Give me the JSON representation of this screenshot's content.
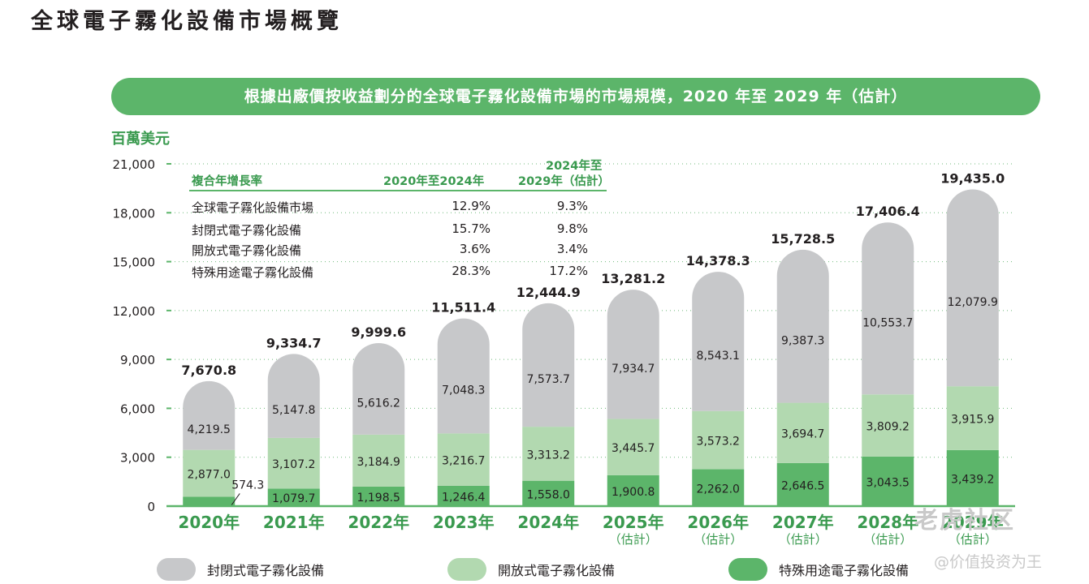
{
  "page_title": "全球電子霧化設備市場概覽",
  "banner": "根據出廠價按收益劃分的全球電子霧化設備市場的市場規模，2020 年至 2029 年（估計）",
  "colors": {
    "closed": "#c7c8ca",
    "open": "#b2d9b0",
    "special": "#5cb56a",
    "accent_text": "#3a9a4f",
    "banner": "#5cb56a"
  },
  "chart_data": {
    "type": "bar",
    "stacked": true,
    "unit_label": "百萬美元",
    "ylim": [
      0,
      21000
    ],
    "yticks": [
      "0",
      "3,000",
      "6,000",
      "9,000",
      "12,000",
      "15,000",
      "18,000",
      "21,000"
    ],
    "ytick_values": [
      0,
      3000,
      6000,
      9000,
      12000,
      15000,
      18000,
      21000
    ],
    "categories": [
      "2020年",
      "2021年",
      "2022年",
      "2023年",
      "2024年",
      "2025年",
      "2026年",
      "2027年",
      "2028年",
      "2029年"
    ],
    "category_notes": [
      "",
      "",
      "",
      "",
      "",
      "（估計）",
      "（估計）",
      "（估計）",
      "（估計）",
      "（估計）"
    ],
    "series": [
      {
        "name": "特殊用途電子霧化設備",
        "key": "special",
        "values": [
          574.3,
          1079.7,
          1198.5,
          1246.4,
          1558.0,
          1900.8,
          2262.0,
          2646.5,
          3043.5,
          3439.2
        ],
        "labels": [
          "574.3",
          "1,079.7",
          "1,198.5",
          "1,246.4",
          "1,558.0",
          "1,900.8",
          "2,262.0",
          "2,646.5",
          "3,043.5",
          "3,439.2"
        ]
      },
      {
        "name": "開放式電子霧化設備",
        "key": "open",
        "values": [
          2877.0,
          3107.2,
          3184.9,
          3216.7,
          3313.2,
          3445.7,
          3573.2,
          3694.7,
          3809.2,
          3915.9
        ],
        "labels": [
          "2,877.0",
          "3,107.2",
          "3,184.9",
          "3,216.7",
          "3,313.2",
          "3,445.7",
          "3,573.2",
          "3,694.7",
          "3,809.2",
          "3,915.9"
        ]
      },
      {
        "name": "封閉式電子霧化設備",
        "key": "closed",
        "values": [
          4219.5,
          5147.8,
          5616.2,
          7048.3,
          7573.7,
          7934.7,
          8543.1,
          9387.3,
          10553.7,
          12079.9
        ],
        "labels": [
          "4,219.5",
          "5,147.8",
          "5,616.2",
          "7,048.3",
          "7,573.7",
          "7,934.7",
          "8,543.1",
          "9,387.3",
          "10,553.7",
          "12,079.9"
        ]
      }
    ],
    "totals": [
      7670.8,
      9334.7,
      9999.6,
      11511.4,
      12444.9,
      13281.2,
      14378.3,
      15728.5,
      17406.4,
      19435.0
    ],
    "total_labels": [
      "7,670.8",
      "9,334.7",
      "9,999.6",
      "11,511.4",
      "12,444.9",
      "13,281.2",
      "14,378.3",
      "15,728.5",
      "17,406.4",
      "19,435.0"
    ],
    "gridlines": "dotted",
    "legend_position": "bottom"
  },
  "cagr_table": {
    "header_label": "複合年增長率",
    "col1_header": "2020年至2024年",
    "col2_header_line1": "2024年至",
    "col2_header_line2": "2029年（估計）",
    "rows": [
      {
        "label": "全球電子霧化設備市場",
        "c1": "12.9%",
        "c2": "9.3%"
      },
      {
        "label": "封閉式電子霧化設備",
        "c1": "15.7%",
        "c2": "9.8%"
      },
      {
        "label": "開放式電子霧化設備",
        "c1": "3.6%",
        "c2": "3.4%"
      },
      {
        "label": "特殊用途電子霧化設備",
        "c1": "28.3%",
        "c2": "17.2%"
      }
    ]
  },
  "legend": [
    {
      "label": "封閉式電子霧化設備",
      "key": "closed"
    },
    {
      "label": "開放式電子霧化設備",
      "key": "open"
    },
    {
      "label": "特殊用途電子霧化設備",
      "key": "special"
    }
  ],
  "watermark": {
    "line1": "老虎社区",
    "line2": "@价值投资为王"
  }
}
